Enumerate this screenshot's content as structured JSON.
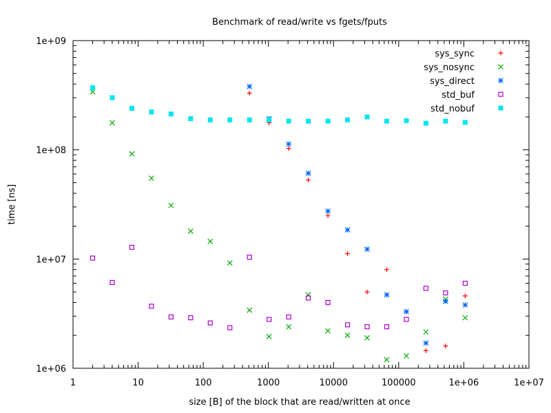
{
  "chart_data": {
    "type": "scatter",
    "title": "Benchmark of read/write vs fgets/fputs",
    "xlabel": "size [B] of the block that are read/written at once",
    "ylabel": "time [ns]",
    "x_scale": "log",
    "y_scale": "log",
    "xlim": [
      1,
      10000000
    ],
    "ylim": [
      1000000,
      1000000000
    ],
    "x_ticks": [
      {
        "value": 1,
        "label": "1"
      },
      {
        "value": 10,
        "label": "10"
      },
      {
        "value": 100,
        "label": "100"
      },
      {
        "value": 1000,
        "label": "1000"
      },
      {
        "value": 10000,
        "label": "10000"
      },
      {
        "value": 100000,
        "label": "100000"
      },
      {
        "value": 1000000,
        "label": "1e+06"
      },
      {
        "value": 10000000,
        "label": "1e+07"
      }
    ],
    "y_ticks": [
      {
        "value": 1000000,
        "label": "1e+06"
      },
      {
        "value": 10000000,
        "label": "1e+07"
      },
      {
        "value": 100000000,
        "label": "1e+08"
      },
      {
        "value": 1000000000,
        "label": "1e+09"
      }
    ],
    "grid": false,
    "legend_position": "top-right",
    "series": [
      {
        "name": "sys_sync",
        "color": "#ff0000",
        "marker": "plus",
        "points": [
          [
            512,
            330000000
          ],
          [
            1024,
            177000000
          ],
          [
            2048,
            103000000
          ],
          [
            4096,
            53000000
          ],
          [
            8192,
            25000000
          ],
          [
            16384,
            11200000
          ],
          [
            32768,
            5000000
          ],
          [
            65536,
            8000000
          ],
          [
            131072,
            3300000
          ],
          [
            262144,
            1450000
          ],
          [
            524288,
            1600000
          ],
          [
            1048576,
            4600000
          ]
        ]
      },
      {
        "name": "sys_nosync",
        "color": "#00aa00",
        "marker": "cross",
        "points": [
          [
            2,
            340000000
          ],
          [
            4,
            177000000
          ],
          [
            8,
            92000000
          ],
          [
            16,
            55000000
          ],
          [
            32,
            31000000
          ],
          [
            64,
            18000000
          ],
          [
            128,
            14500000
          ],
          [
            256,
            9200000
          ],
          [
            512,
            3400000
          ],
          [
            1024,
            1950000
          ],
          [
            2048,
            2400000
          ],
          [
            4096,
            4700000
          ],
          [
            8192,
            2200000
          ],
          [
            16384,
            2000000
          ],
          [
            32768,
            1900000
          ],
          [
            65536,
            1200000
          ],
          [
            131072,
            1300000
          ],
          [
            262144,
            2150000
          ],
          [
            524288,
            4300000
          ],
          [
            1048576,
            2900000
          ]
        ]
      },
      {
        "name": "sys_direct",
        "color": "#0066ff",
        "marker": "star",
        "points": [
          [
            512,
            380000000
          ],
          [
            1024,
            193000000
          ],
          [
            2048,
            113000000
          ],
          [
            4096,
            61000000
          ],
          [
            8192,
            27500000
          ],
          [
            16384,
            18500000
          ],
          [
            32768,
            12300000
          ],
          [
            65536,
            4700000
          ],
          [
            131072,
            3300000
          ],
          [
            262144,
            1700000
          ],
          [
            524288,
            4100000
          ],
          [
            1048576,
            3800000
          ]
        ]
      },
      {
        "name": "std_buf",
        "color": "#aa00cc",
        "marker": "open-square",
        "points": [
          [
            2,
            10200000
          ],
          [
            4,
            6100000
          ],
          [
            8,
            12800000
          ],
          [
            16,
            3700000
          ],
          [
            32,
            2950000
          ],
          [
            64,
            2900000
          ],
          [
            128,
            2600000
          ],
          [
            256,
            2350000
          ],
          [
            512,
            10400000
          ],
          [
            1024,
            2800000
          ],
          [
            2048,
            2950000
          ],
          [
            4096,
            4400000
          ],
          [
            8192,
            4000000
          ],
          [
            16384,
            2500000
          ],
          [
            32768,
            2400000
          ],
          [
            65536,
            2400000
          ],
          [
            131072,
            2800000
          ],
          [
            262144,
            5400000
          ],
          [
            524288,
            4900000
          ],
          [
            1048576,
            6000000
          ]
        ]
      },
      {
        "name": "std_nobuf",
        "color": "#00e5ee",
        "marker": "filled-square",
        "points": [
          [
            2,
            370000000
          ],
          [
            4,
            300000000
          ],
          [
            8,
            240000000
          ],
          [
            16,
            222000000
          ],
          [
            32,
            213000000
          ],
          [
            64,
            193000000
          ],
          [
            128,
            188000000
          ],
          [
            256,
            188000000
          ],
          [
            512,
            188000000
          ],
          [
            1024,
            188000000
          ],
          [
            2048,
            183000000
          ],
          [
            4096,
            183000000
          ],
          [
            8192,
            183000000
          ],
          [
            16384,
            188000000
          ],
          [
            32768,
            200000000
          ],
          [
            65536,
            183000000
          ],
          [
            131072,
            185000000
          ],
          [
            262144,
            175000000
          ],
          [
            524288,
            183000000
          ],
          [
            1048576,
            178000000
          ]
        ]
      }
    ]
  }
}
